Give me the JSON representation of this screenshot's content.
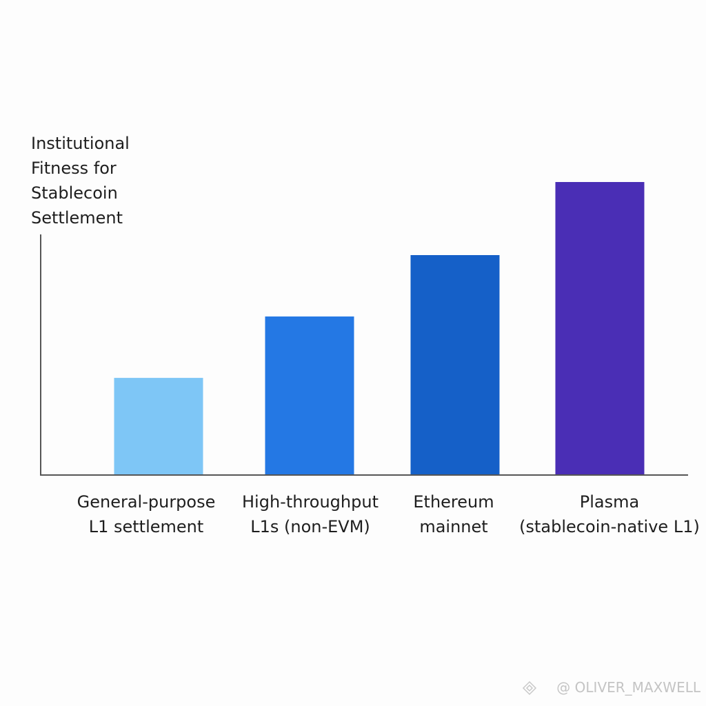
{
  "chart_data": {
    "type": "bar",
    "y_label": "Institutional\nFitness for\nStablecoin\nSettlement",
    "categories": [
      "General-purpose\nL1 settlement",
      "High-throughput\nL1s (non-EVM)",
      "Ethereum\nmainnet",
      "Plasma\n(stablecoin-native L1)"
    ],
    "values": [
      33,
      54,
      75,
      100
    ],
    "colors": [
      "#7ec6f6",
      "#2478e4",
      "#1560c8",
      "#4a2eb5"
    ],
    "ylim": [
      0,
      100
    ],
    "grid": false,
    "watermark": "@ OLIVER_MAXWELL"
  }
}
